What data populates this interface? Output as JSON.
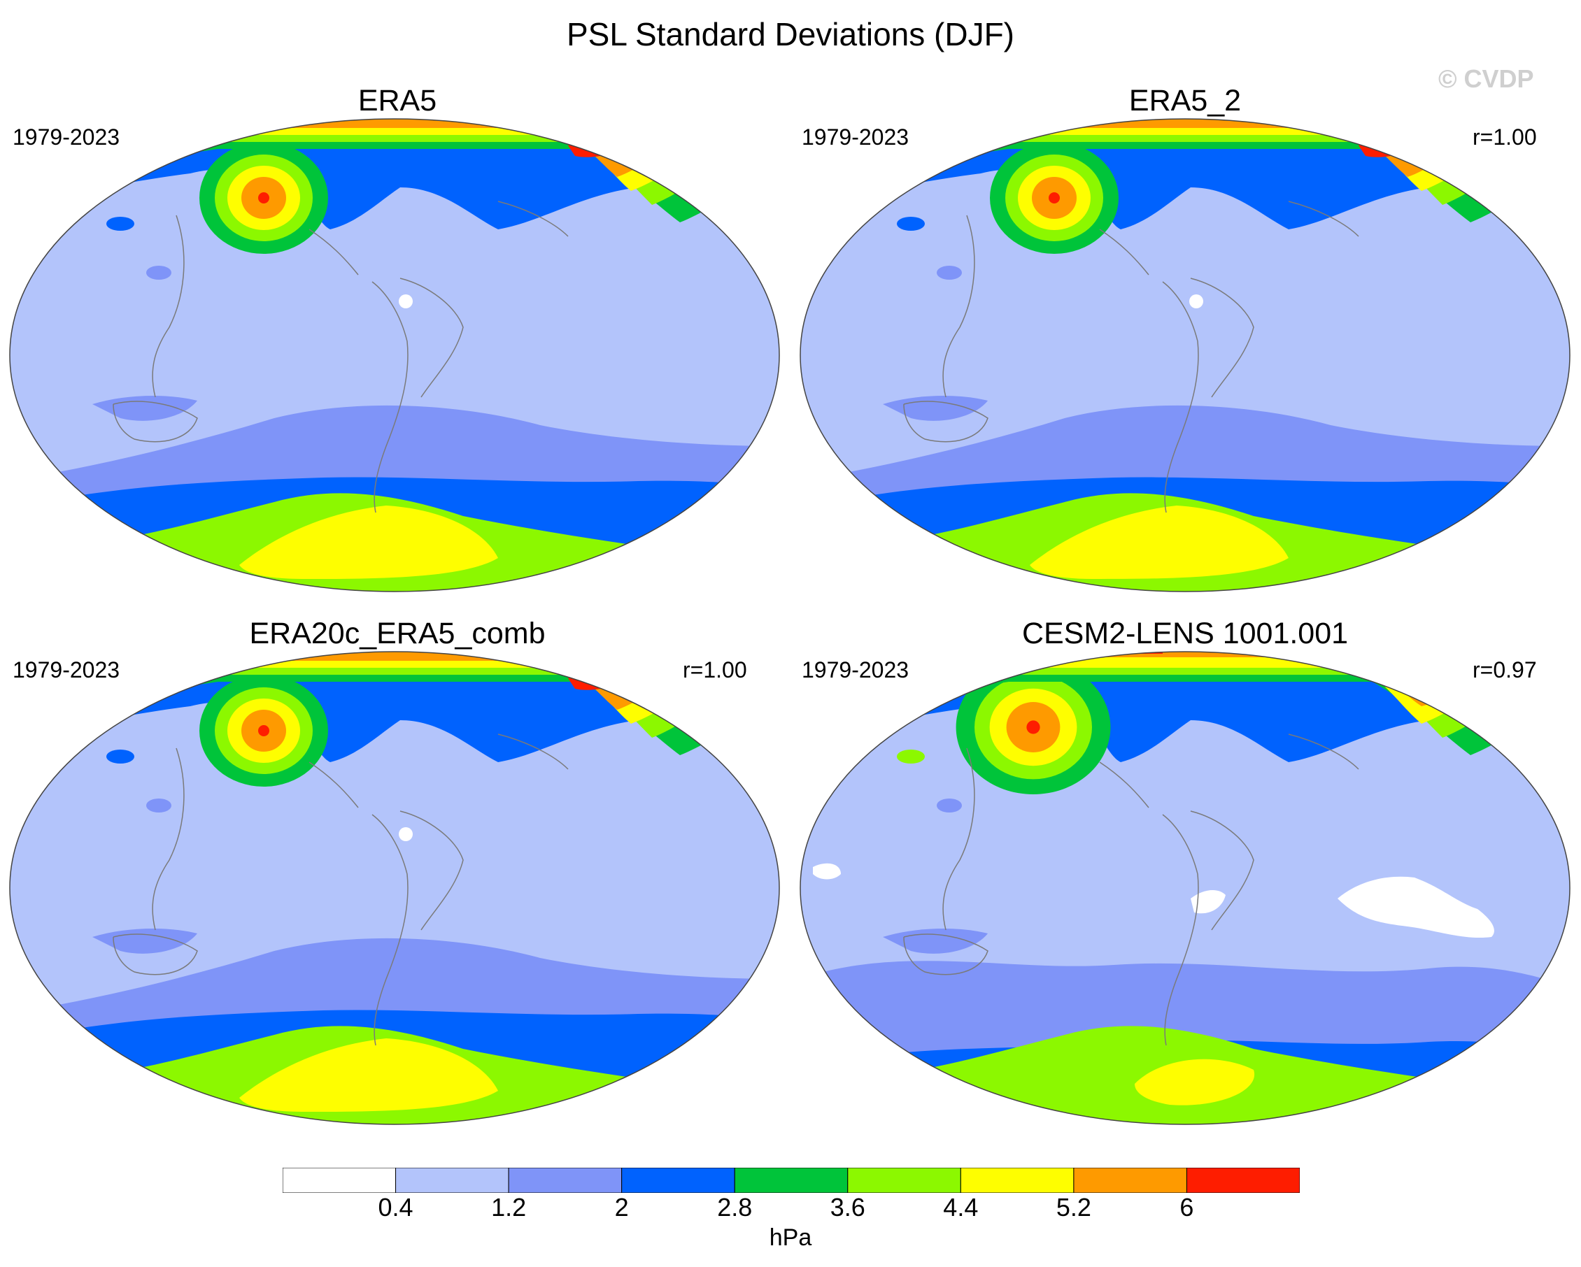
{
  "figure": {
    "title": "PSL Standard Deviations (DJF)",
    "watermark": "© CVDP"
  },
  "panels": [
    {
      "title": "ERA5",
      "years": "1979-2023",
      "corr": ""
    },
    {
      "title": "ERA5_2",
      "years": "1979-2023",
      "corr": "r=1.00"
    },
    {
      "title": "ERA20c_ERA5_comb",
      "years": "1979-2023",
      "corr": "r=1.00"
    },
    {
      "title": "CESM2-LENS 1001.001",
      "years": "1979-2023",
      "corr": "r=0.97"
    }
  ],
  "colorbar": {
    "units": "hPa",
    "levels": [
      "0.4",
      "1.2",
      "2",
      "2.8",
      "3.6",
      "4.4",
      "5.2",
      "6"
    ],
    "colors": [
      "#ffffff",
      "#b3c4fb",
      "#7f94f8",
      "#0062fe",
      "#00c43a",
      "#8cf800",
      "#fefe00",
      "#fe9a00",
      "#fe1d00"
    ]
  },
  "colors": {
    "coastline": "#7a7a7a",
    "land_accent": "#ffffff"
  }
}
